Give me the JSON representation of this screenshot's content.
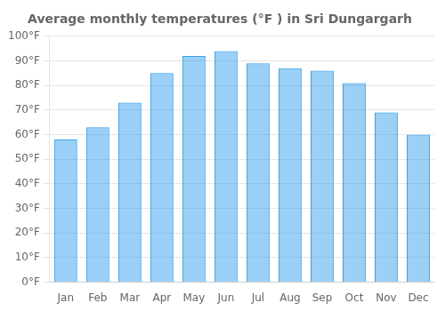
{
  "chart_data": {
    "type": "bar",
    "title": "Average monthly temperatures (°F ) in Sri Dungargarh",
    "categories": [
      "Jan",
      "Feb",
      "Mar",
      "Apr",
      "May",
      "Jun",
      "Jul",
      "Aug",
      "Sep",
      "Oct",
      "Nov",
      "Dec"
    ],
    "values": [
      58,
      63,
      73,
      85,
      92,
      94,
      89,
      87,
      86,
      81,
      69,
      60
    ],
    "ylim": [
      0,
      100
    ],
    "yticks": [
      {
        "value": 0,
        "label": "0°F"
      },
      {
        "value": 10,
        "label": "10°F"
      },
      {
        "value": 20,
        "label": "20°F"
      },
      {
        "value": 30,
        "label": "30°F"
      },
      {
        "value": 40,
        "label": "40°F"
      },
      {
        "value": 50,
        "label": "50°F"
      },
      {
        "value": 60,
        "label": "60°F"
      },
      {
        "value": 70,
        "label": "70°F"
      },
      {
        "value": 80,
        "label": "80°F"
      },
      {
        "value": 90,
        "label": "90°F"
      },
      {
        "value": 100,
        "label": "100°F"
      }
    ],
    "grid": true
  }
}
